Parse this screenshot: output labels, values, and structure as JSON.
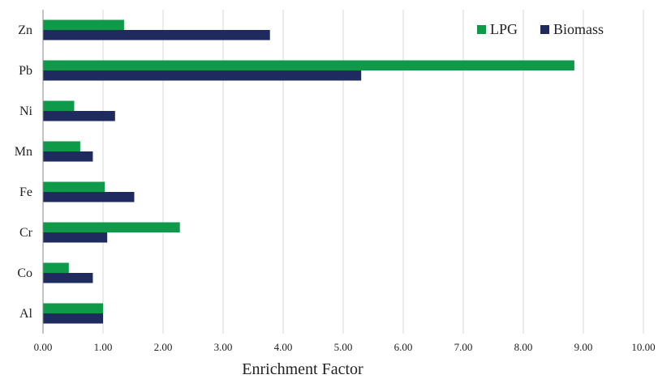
{
  "chart_data": {
    "type": "bar",
    "orientation": "horizontal",
    "categories": [
      "Zn",
      "Pb",
      "Ni",
      "Mn",
      "Fe",
      "Cr",
      "Co",
      "Al"
    ],
    "series": [
      {
        "name": "LPG",
        "color": "#0f9a49",
        "values": [
          1.35,
          8.85,
          0.52,
          0.62,
          1.03,
          2.28,
          0.43,
          1.0
        ]
      },
      {
        "name": "Biomass",
        "color": "#1f2a5e",
        "values": [
          3.78,
          5.3,
          1.2,
          0.83,
          1.52,
          1.07,
          0.83,
          1.0
        ]
      }
    ],
    "x_ticks": [
      "0.00",
      "1.00",
      "2.00",
      "3.00",
      "4.00",
      "5.00",
      "6.00",
      "7.00",
      "8.00",
      "9.00",
      "10.00"
    ],
    "xlim": [
      0,
      10
    ],
    "xlabel": "Enrichment Factor",
    "ylabel": "",
    "title": "",
    "grid": "vertical",
    "legend_position": "top-right"
  }
}
